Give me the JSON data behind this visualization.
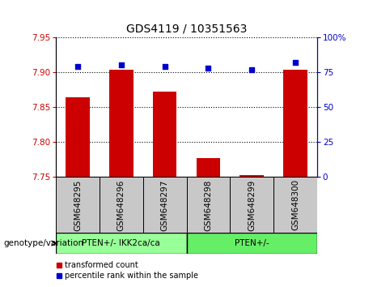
{
  "title": "GDS4119 / 10351563",
  "categories": [
    "GSM648295",
    "GSM648296",
    "GSM648297",
    "GSM648298",
    "GSM648299",
    "GSM648300"
  ],
  "bar_values": [
    7.864,
    7.903,
    7.872,
    7.776,
    7.752,
    7.903
  ],
  "percentile_values": [
    79,
    80,
    79,
    78,
    77,
    82
  ],
  "ylim_left": [
    7.75,
    7.95
  ],
  "ylim_right": [
    0,
    100
  ],
  "yticks_left": [
    7.75,
    7.8,
    7.85,
    7.9,
    7.95
  ],
  "yticks_right": [
    0,
    25,
    50,
    75,
    100
  ],
  "ytick_labels_right": [
    "0",
    "25",
    "50",
    "75",
    "100%"
  ],
  "bar_color": "#cc0000",
  "scatter_color": "#0000cc",
  "group1_label": "PTEN+/- IKK2ca/ca",
  "group2_label": "PTEN+/-",
  "group1_color": "#99ff99",
  "group2_color": "#66ee66",
  "xlabel_area": "genotype/variation",
  "legend_bar_label": "transformed count",
  "legend_scatter_label": "percentile rank within the sample",
  "background_color": "#ffffff",
  "tick_label_color_left": "#cc0000",
  "tick_label_color_right": "#0000cc",
  "sample_box_color": "#c8c8c8",
  "title_fontsize": 10,
  "tick_fontsize": 7.5,
  "label_fontsize": 7.5,
  "legend_fontsize": 7
}
